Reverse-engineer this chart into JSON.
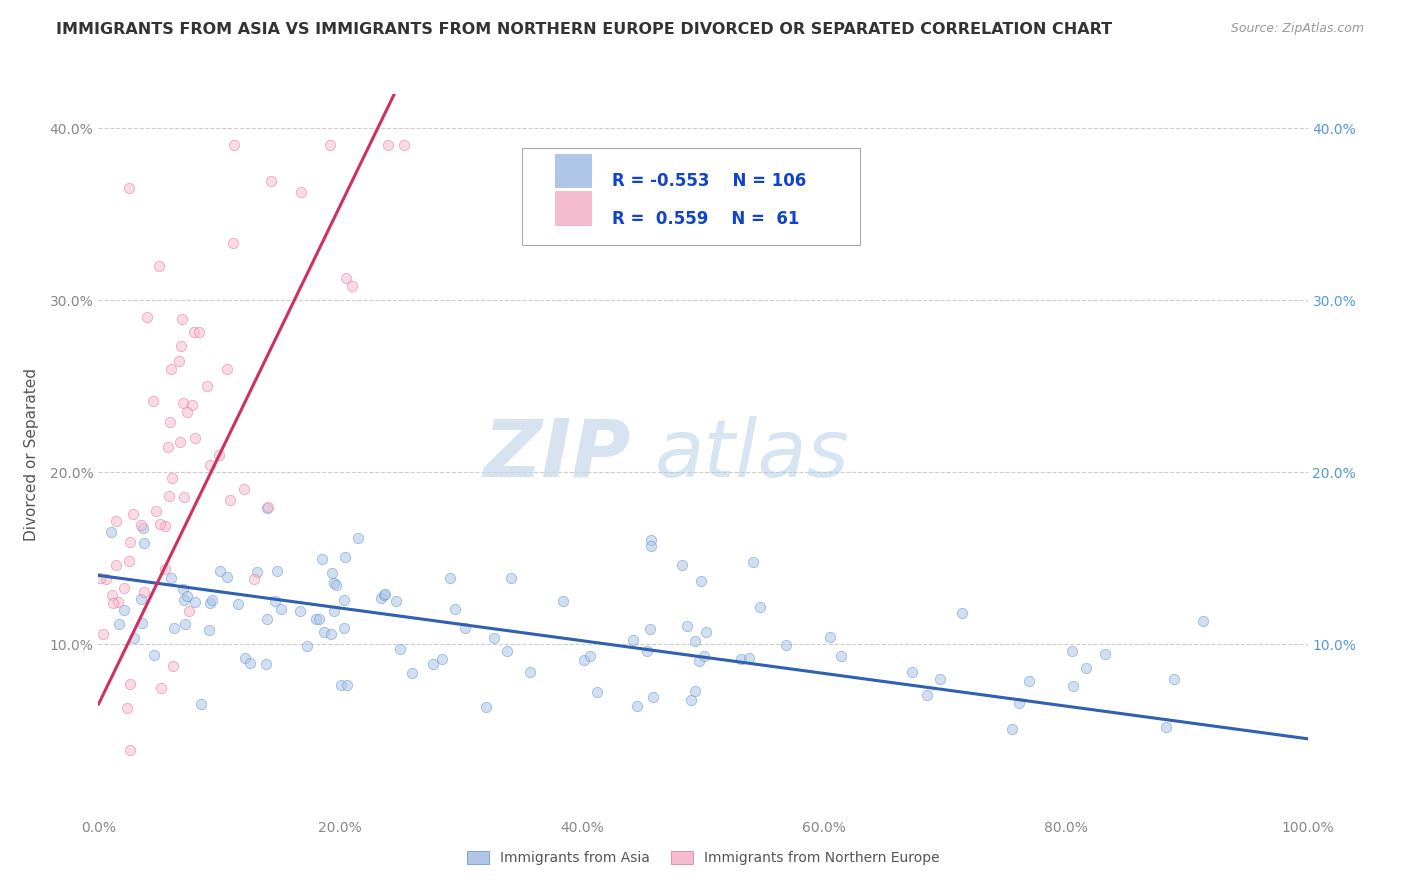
{
  "title": "IMMIGRANTS FROM ASIA VS IMMIGRANTS FROM NORTHERN EUROPE DIVORCED OR SEPARATED CORRELATION CHART",
  "source_text": "Source: ZipAtlas.com",
  "ylabel": "Divorced or Separated",
  "watermark_zip": "ZIP",
  "watermark_atlas": "atlas",
  "xlim": [
    0.0,
    1.0
  ],
  "ylim": [
    0.0,
    0.42
  ],
  "xticks": [
    0.0,
    0.2,
    0.4,
    0.6,
    0.8,
    1.0
  ],
  "xticklabels": [
    "0.0%",
    "20.0%",
    "40.0%",
    "60.0%",
    "80.0%",
    "100.0%"
  ],
  "yticks": [
    0.0,
    0.1,
    0.2,
    0.3,
    0.4
  ],
  "yticklabels_left": [
    "",
    "10.0%",
    "20.0%",
    "30.0%",
    "40.0%"
  ],
  "yticklabels_right": [
    "",
    "10.0%",
    "20.0%",
    "30.0%",
    "40.0%"
  ],
  "series_asia": {
    "label": "Immigrants from Asia",
    "fill_color": "#aec6e8",
    "edge_color": "#5b8fc9",
    "line_color": "#3060b0",
    "R": -0.553,
    "N": 106,
    "alpha": 0.55
  },
  "series_ne": {
    "label": "Immigrants from Northern Europe",
    "fill_color": "#f5bcd0",
    "edge_color": "#e07090",
    "line_color": "#d03060",
    "R": 0.559,
    "N": 61,
    "alpha": 0.55
  },
  "legend_R_asia": "-0.553",
  "legend_N_asia": "106",
  "legend_R_ne": "0.559",
  "legend_N_ne": "61",
  "background_color": "#ffffff",
  "grid_color": "#cccccc",
  "title_color": "#333333",
  "title_fontsize": 11.5,
  "axis_label_color": "#555555",
  "tick_color_left": "#888888",
  "tick_color_right": "#5599dd",
  "legend_text_color": "#1144cc"
}
